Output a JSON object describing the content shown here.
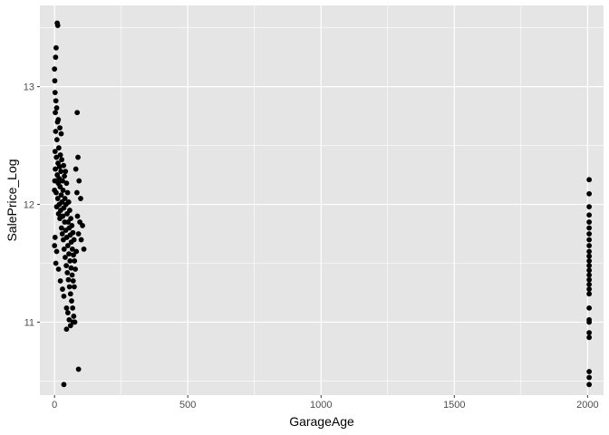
{
  "chart_data": {
    "type": "scatter",
    "xlabel": "GarageAge",
    "ylabel": "SalePrice_Log",
    "xlim": [
      -55,
      2060
    ],
    "ylim": [
      10.38,
      13.69
    ],
    "x_ticks": [
      0,
      500,
      1000,
      1500,
      2000
    ],
    "x_tick_labels": [
      "0",
      "500",
      "1000",
      "1500",
      "2000"
    ],
    "y_ticks": [
      11,
      12,
      13
    ],
    "y_tick_labels": [
      "11",
      "12",
      "13"
    ],
    "grid": true,
    "legend": "none",
    "point_color": "#000000",
    "panel_background": "#e5e5e5",
    "grid_color": "#ffffff",
    "series": [
      {
        "points": [
          [
            0,
            12.12
          ],
          [
            1,
            12.2
          ],
          [
            2,
            12.45
          ],
          [
            3,
            12.3
          ],
          [
            4,
            12.62
          ],
          [
            5,
            12.88
          ],
          [
            6,
            12.1
          ],
          [
            7,
            12.4
          ],
          [
            8,
            11.98
          ],
          [
            9,
            12.55
          ],
          [
            10,
            12.25
          ],
          [
            11,
            12.7
          ],
          [
            12,
            12.05
          ],
          [
            13,
            12.35
          ],
          [
            14,
            12.18
          ],
          [
            15,
            11.92
          ],
          [
            16,
            12.48
          ],
          [
            17,
            12.22
          ],
          [
            18,
            12.0
          ],
          [
            19,
            12.32
          ],
          [
            20,
            11.88
          ],
          [
            21,
            12.15
          ],
          [
            22,
            12.42
          ],
          [
            23,
            11.95
          ],
          [
            24,
            12.28
          ],
          [
            25,
            12.08
          ],
          [
            26,
            11.8
          ],
          [
            27,
            12.38
          ],
          [
            28,
            12.02
          ],
          [
            29,
            11.75
          ],
          [
            30,
            12.2
          ],
          [
            31,
            11.9
          ],
          [
            32,
            12.12
          ],
          [
            33,
            11.7
          ],
          [
            34,
            12.33
          ],
          [
            35,
            11.97
          ],
          [
            36,
            11.62
          ],
          [
            37,
            12.24
          ],
          [
            38,
            11.85
          ],
          [
            39,
            12.05
          ],
          [
            40,
            11.55
          ],
          [
            41,
            12.28
          ],
          [
            42,
            11.78
          ],
          [
            43,
            12.0
          ],
          [
            44,
            11.48
          ],
          [
            45,
            12.18
          ],
          [
            46,
            11.72
          ],
          [
            47,
            11.92
          ],
          [
            48,
            11.42
          ],
          [
            49,
            12.1
          ],
          [
            50,
            11.65
          ],
          [
            51,
            11.85
          ],
          [
            52,
            11.36
          ],
          [
            53,
            12.02
          ],
          [
            54,
            11.58
          ],
          [
            55,
            11.8
          ],
          [
            56,
            11.3
          ],
          [
            57,
            11.95
          ],
          [
            58,
            11.52
          ],
          [
            59,
            11.74
          ],
          [
            60,
            11.24
          ],
          [
            61,
            11.88
          ],
          [
            62,
            11.46
          ],
          [
            63,
            11.68
          ],
          [
            64,
            11.18
          ],
          [
            65,
            11.82
          ],
          [
            66,
            11.4
          ],
          [
            67,
            11.62
          ],
          [
            68,
            11.12
          ],
          [
            69,
            11.76
          ],
          [
            70,
            11.35
          ],
          [
            71,
            11.57
          ],
          [
            72,
            11.05
          ],
          [
            73,
            11.7
          ],
          [
            74,
            11.3
          ],
          [
            75,
            11.52
          ],
          [
            76,
            11.0
          ],
          [
            78,
            11.45
          ],
          [
            80,
            12.3
          ],
          [
            82,
            11.6
          ],
          [
            84,
            12.1
          ],
          [
            86,
            11.9
          ],
          [
            88,
            12.4
          ],
          [
            90,
            11.75
          ],
          [
            92,
            12.2
          ],
          [
            95,
            11.85
          ],
          [
            98,
            12.05
          ],
          [
            100,
            11.7
          ],
          [
            105,
            11.82
          ],
          [
            110,
            11.62
          ],
          [
            0,
            13.15
          ],
          [
            1,
            13.05
          ],
          [
            2,
            12.95
          ],
          [
            4,
            13.25
          ],
          [
            6,
            13.33
          ],
          [
            10,
            13.54
          ],
          [
            12,
            13.52
          ],
          [
            3,
            12.78
          ],
          [
            8,
            12.82
          ],
          [
            14,
            12.72
          ],
          [
            20,
            12.65
          ],
          [
            25,
            12.6
          ],
          [
            0,
            11.65
          ],
          [
            2,
            11.72
          ],
          [
            5,
            11.5
          ],
          [
            8,
            11.6
          ],
          [
            15,
            11.45
          ],
          [
            22,
            11.35
          ],
          [
            30,
            11.28
          ],
          [
            35,
            11.22
          ],
          [
            45,
            11.12
          ],
          [
            50,
            11.08
          ],
          [
            55,
            11.02
          ],
          [
            60,
            10.97
          ],
          [
            45,
            10.94
          ],
          [
            70,
            11.0
          ],
          [
            85,
            12.78
          ],
          [
            90,
            10.6
          ],
          [
            35,
            10.47
          ],
          [
            2006,
            12.21
          ],
          [
            2006,
            12.09
          ],
          [
            2006,
            11.98
          ],
          [
            2006,
            11.91
          ],
          [
            2006,
            11.85
          ],
          [
            2006,
            11.8
          ],
          [
            2006,
            11.75
          ],
          [
            2006,
            11.7
          ],
          [
            2006,
            11.65
          ],
          [
            2006,
            11.6
          ],
          [
            2006,
            11.56
          ],
          [
            2006,
            11.52
          ],
          [
            2006,
            11.48
          ],
          [
            2006,
            11.44
          ],
          [
            2006,
            11.4
          ],
          [
            2006,
            11.36
          ],
          [
            2006,
            11.32
          ],
          [
            2006,
            11.28
          ],
          [
            2006,
            11.24
          ],
          [
            2006,
            11.12
          ],
          [
            2006,
            11.02
          ],
          [
            2006,
            11.0
          ],
          [
            2006,
            10.91
          ],
          [
            2006,
            10.87
          ],
          [
            2006,
            10.58
          ],
          [
            2006,
            10.53
          ],
          [
            2006,
            10.47
          ]
        ]
      }
    ]
  }
}
